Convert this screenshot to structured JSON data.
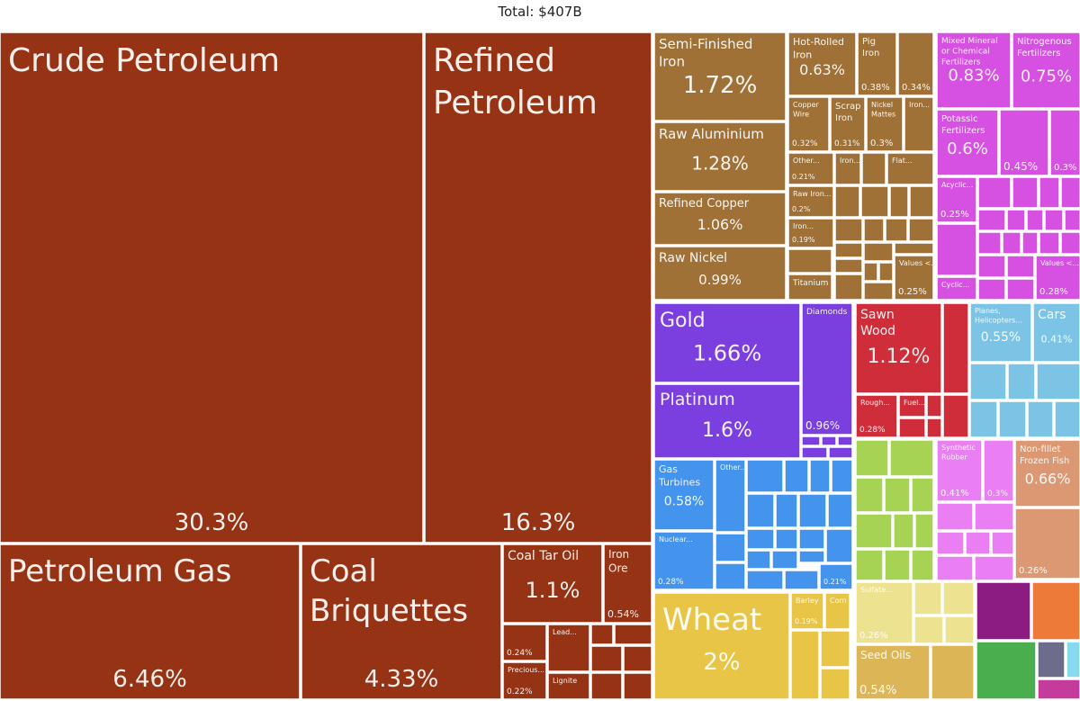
{
  "chart_data": {
    "type": "treemap",
    "title": "Total: $407B",
    "colors": {
      "mineral": "#963314",
      "metal": "#9f7137",
      "chemical": "#d651e2",
      "precious": "#7b3fe0",
      "wood": "#cf2d39",
      "transport": "#7cc4e6",
      "machinery": "#4494ee",
      "vegetable": "#e8c546",
      "animal": "#dc9872",
      "plastics": "#e97ff2",
      "foodstuffs": "#ece28f",
      "fats": "#dcb656",
      "textiles": "#a6d354",
      "misc1": "#8c1c82",
      "misc2": "#ee7a3a",
      "misc3": "#4aae4e",
      "misc4": "#6d6c8b",
      "misc5": "#c43b9c",
      "misc6": "#89d9ee"
    },
    "cells": [
      {
        "label": "Crude Petroleum",
        "value": "30.3%",
        "group": "mineral"
      },
      {
        "label": "Refined Petroleum",
        "value": "16.3%",
        "group": "mineral"
      },
      {
        "label": "Petroleum Gas",
        "value": "6.46%",
        "group": "mineral"
      },
      {
        "label": "Coal Briquettes",
        "value": "4.33%",
        "group": "mineral"
      },
      {
        "label": "Coal Tar Oil",
        "value": "1.1%",
        "group": "mineral"
      },
      {
        "label": "Iron Ore",
        "value": "0.54%",
        "group": "mineral"
      },
      {
        "label": "",
        "value": "0.24%",
        "group": "mineral"
      },
      {
        "label": "Precious...",
        "value": "0.22%",
        "group": "mineral"
      },
      {
        "label": "Lead...",
        "value": "",
        "group": "mineral"
      },
      {
        "label": "Lignite",
        "value": "",
        "group": "mineral"
      },
      {
        "label": "Semi-Finished Iron",
        "value": "1.72%",
        "group": "metal"
      },
      {
        "label": "Raw Aluminium",
        "value": "1.28%",
        "group": "metal"
      },
      {
        "label": "Refined Copper",
        "value": "1.06%",
        "group": "metal"
      },
      {
        "label": "Raw Nickel",
        "value": "0.99%",
        "group": "metal"
      },
      {
        "label": "Hot-Rolled Iron",
        "value": "0.63%",
        "group": "metal"
      },
      {
        "label": "Pig Iron",
        "value": "0.38%",
        "group": "metal"
      },
      {
        "label": "",
        "value": "0.34%",
        "group": "metal"
      },
      {
        "label": "Copper Wire",
        "value": "0.32%",
        "group": "metal"
      },
      {
        "label": "Scrap Iron",
        "value": "0.31%",
        "group": "metal"
      },
      {
        "label": "Nickel Mattes",
        "value": "0.3%",
        "group": "metal"
      },
      {
        "label": "Iron...",
        "value": "",
        "group": "metal"
      },
      {
        "label": "Other...",
        "value": "0.21%",
        "group": "metal"
      },
      {
        "label": "Iron...",
        "value": "",
        "group": "metal"
      },
      {
        "label": "Flat...",
        "value": "",
        "group": "metal"
      },
      {
        "label": "Raw Iron...",
        "value": "0.2%",
        "group": "metal"
      },
      {
        "label": "Iron...",
        "value": "0.19%",
        "group": "metal"
      },
      {
        "label": "Titanium",
        "value": "",
        "group": "metal"
      },
      {
        "label": "Values <...",
        "value": "0.25%",
        "group": "metal"
      },
      {
        "label": "Mixed Mineral or Chemical Fertilizers",
        "value": "0.83%",
        "group": "chemical"
      },
      {
        "label": "Nitrogenous Fertilizers",
        "value": "0.75%",
        "group": "chemical"
      },
      {
        "label": "Potassic Fertilizers",
        "value": "0.6%",
        "group": "chemical"
      },
      {
        "label": "",
        "value": "0.45%",
        "group": "chemical"
      },
      {
        "label": "",
        "value": "0.3%",
        "group": "chemical"
      },
      {
        "label": "Acyclic...",
        "value": "0.25%",
        "group": "chemical"
      },
      {
        "label": "Values <...",
        "value": "0.28%",
        "group": "chemical"
      },
      {
        "label": "Cyclic...",
        "value": "",
        "group": "chemical"
      },
      {
        "label": "Gold",
        "value": "1.66%",
        "group": "precious"
      },
      {
        "label": "Platinum",
        "value": "1.6%",
        "group": "precious"
      },
      {
        "label": "Diamonds",
        "value": "0.96%",
        "group": "precious"
      },
      {
        "label": "Sawn Wood",
        "value": "1.12%",
        "group": "wood"
      },
      {
        "label": "Rough...",
        "value": "0.28%",
        "group": "wood"
      },
      {
        "label": "Fuel...",
        "value": "",
        "group": "wood"
      },
      {
        "label": "Planes, Helicopters...",
        "value": "0.55%",
        "group": "transport"
      },
      {
        "label": "Cars",
        "value": "0.41%",
        "group": "transport"
      },
      {
        "label": "Gas Turbines",
        "value": "0.58%",
        "group": "machinery"
      },
      {
        "label": "Other...",
        "value": "",
        "group": "machinery"
      },
      {
        "label": "Nuclear...",
        "value": "0.28%",
        "group": "machinery"
      },
      {
        "label": "",
        "value": "0.21%",
        "group": "machinery"
      },
      {
        "label": "Wheat",
        "value": "2%",
        "group": "vegetable"
      },
      {
        "label": "Barley",
        "value": "0.19%",
        "group": "vegetable"
      },
      {
        "label": "Corn",
        "value": "",
        "group": "vegetable"
      },
      {
        "label": "Synthetic Rubber",
        "value": "0.41%",
        "group": "plastics"
      },
      {
        "label": "",
        "value": "0.3%",
        "group": "plastics"
      },
      {
        "label": "Non-fillet Frozen Fish",
        "value": "0.66%",
        "group": "animal"
      },
      {
        "label": "",
        "value": "0.26%",
        "group": "animal"
      },
      {
        "label": "Sulfate...",
        "value": "0.26%",
        "group": "foodstuffs"
      },
      {
        "label": "Seed Oils",
        "value": "0.54%",
        "group": "fats"
      }
    ]
  }
}
